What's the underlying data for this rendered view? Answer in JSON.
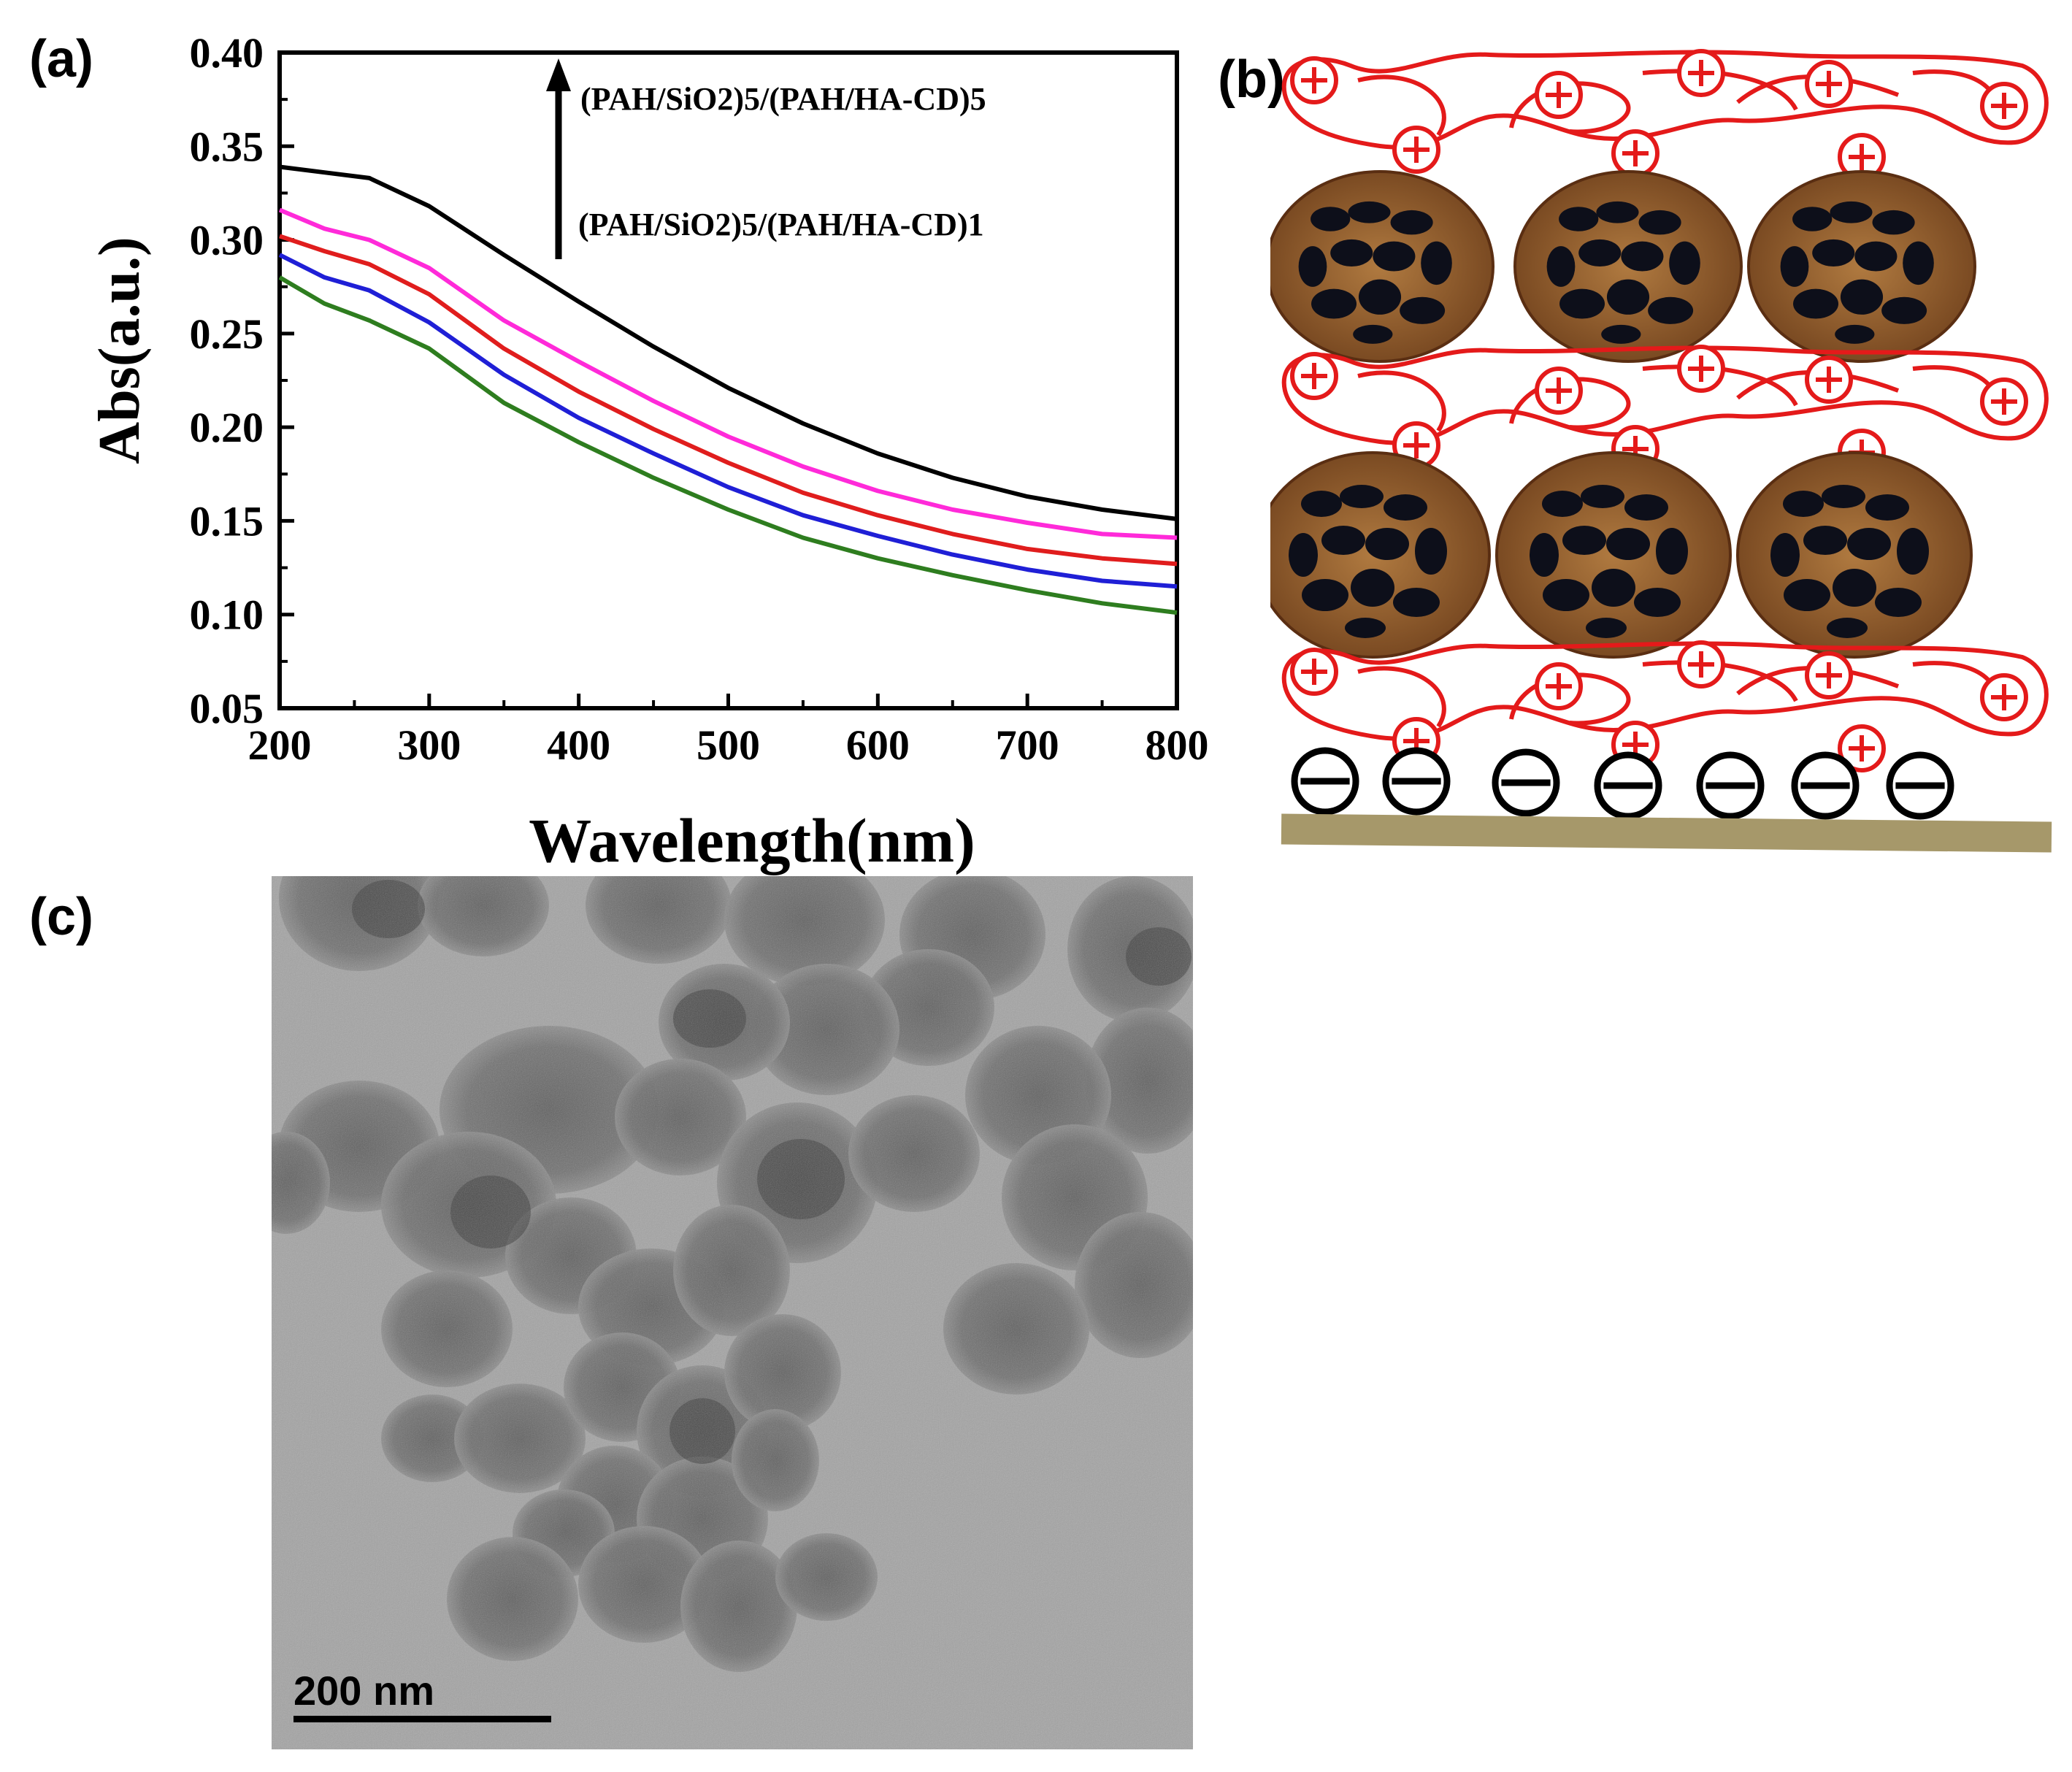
{
  "panels": {
    "a": "(a)",
    "b": "(b)",
    "c": "(c)"
  },
  "chart_data": {
    "type": "line",
    "title": "",
    "xlabel": "Wavelength(nm)",
    "ylabel": "Abs(a.u.)",
    "xlim": [
      200,
      800
    ],
    "ylim": [
      0.05,
      0.4
    ],
    "xticks": [
      "200",
      "300",
      "400",
      "500",
      "600",
      "700",
      "800"
    ],
    "yticks": [
      "0.05",
      "0.10",
      "0.15",
      "0.20",
      "0.25",
      "0.30",
      "0.35",
      "0.40"
    ],
    "grid": false,
    "legend": "none",
    "annotations": {
      "top": "(PAH/SiO2)5/(PAH/HA-CD)5",
      "bottom": "(PAH/SiO2)5/(PAH/HA-CD)1"
    },
    "x": [
      200,
      230,
      260,
      300,
      350,
      400,
      450,
      500,
      550,
      600,
      650,
      700,
      750,
      800
    ],
    "series": [
      {
        "color": "#2e7d1f",
        "values": [
          0.28,
          0.266,
          0.257,
          0.242,
          0.213,
          0.192,
          0.173,
          0.156,
          0.141,
          0.13,
          0.121,
          0.113,
          0.106,
          0.101
        ]
      },
      {
        "color": "#1f1fd6",
        "values": [
          0.292,
          0.28,
          0.273,
          0.256,
          0.228,
          0.205,
          0.186,
          0.168,
          0.153,
          0.142,
          0.132,
          0.124,
          0.118,
          0.115
        ]
      },
      {
        "color": "#e01d1d",
        "values": [
          0.302,
          0.294,
          0.287,
          0.271,
          0.242,
          0.219,
          0.199,
          0.181,
          0.165,
          0.153,
          0.143,
          0.135,
          0.13,
          0.127
        ]
      },
      {
        "color": "#ff2ad9",
        "values": [
          0.316,
          0.306,
          0.3,
          0.285,
          0.257,
          0.235,
          0.214,
          0.195,
          0.179,
          0.166,
          0.156,
          0.149,
          0.143,
          0.141
        ]
      },
      {
        "color": "#000000",
        "values": [
          0.339,
          0.336,
          0.333,
          0.318,
          0.292,
          0.267,
          0.243,
          0.221,
          0.202,
          0.186,
          0.173,
          0.163,
          0.156,
          0.151
        ]
      }
    ]
  },
  "tem": {
    "scale_bar_label": "200 nm"
  },
  "colors": {
    "polymer": "#e41a1a",
    "particle_shell": "#8b5a2b",
    "substrate": "#a6986a"
  }
}
